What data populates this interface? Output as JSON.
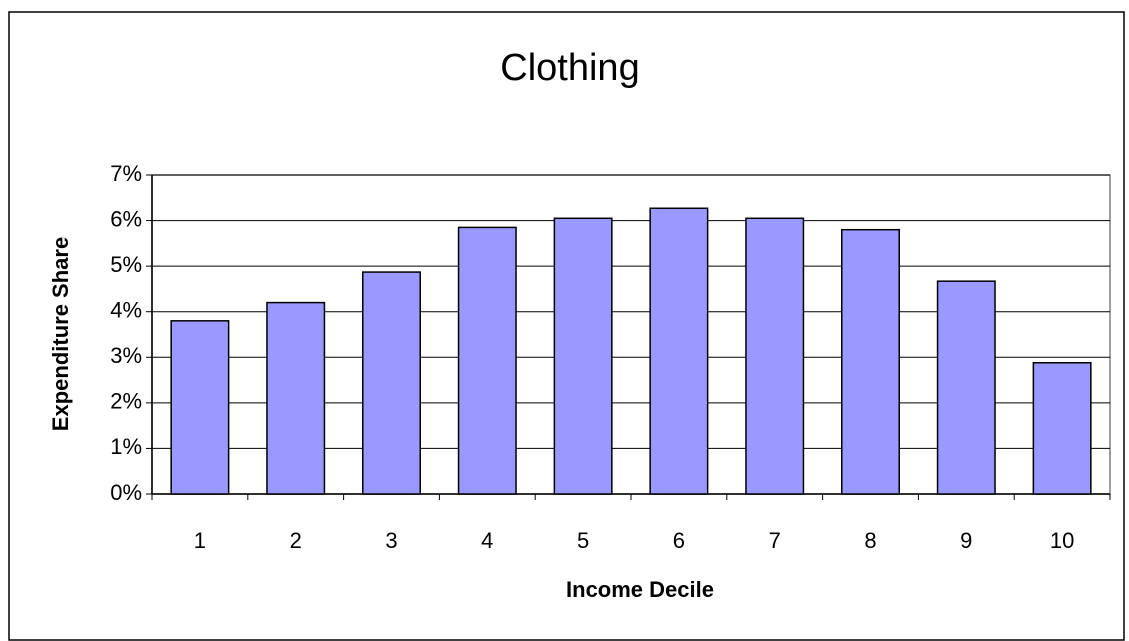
{
  "chart_data": {
    "type": "bar",
    "title": "Clothing",
    "x_label": "Income Decile",
    "y_label": "Expenditure Share",
    "categories": [
      "1",
      "2",
      "3",
      "4",
      "5",
      "6",
      "7",
      "8",
      "9",
      "10"
    ],
    "values": [
      3.8,
      4.2,
      4.87,
      5.85,
      6.05,
      6.27,
      6.05,
      5.8,
      4.67,
      2.88
    ],
    "color": "#9999ff",
    "ylim": [
      0,
      7
    ],
    "yticks": [
      {
        "value": 0,
        "label": "0%"
      },
      {
        "value": 1,
        "label": "1%"
      },
      {
        "value": 2,
        "label": "2%"
      },
      {
        "value": 3,
        "label": "3%"
      },
      {
        "value": 4,
        "label": "4%"
      },
      {
        "value": 5,
        "label": "5%"
      },
      {
        "value": 6,
        "label": "6%"
      },
      {
        "value": 7,
        "label": "7%"
      }
    ],
    "grid": true
  }
}
